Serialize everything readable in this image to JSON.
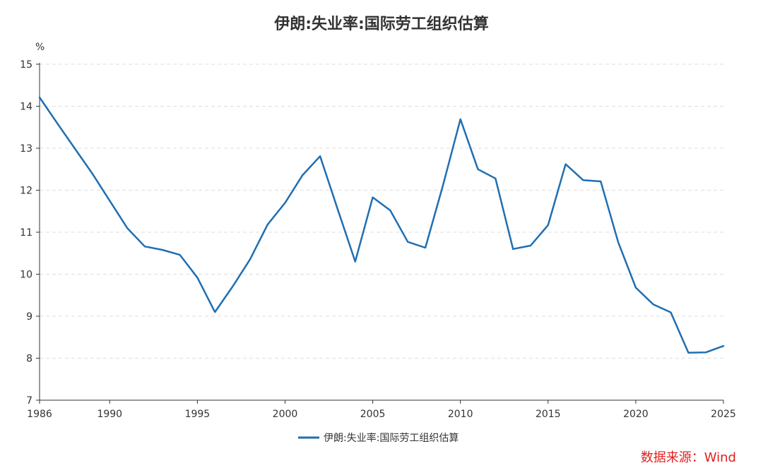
{
  "chart_data": {
    "type": "line",
    "title": "伊朗:失业率:国际劳工组织估算",
    "unit_label": "%",
    "xlim": [
      1986,
      2025
    ],
    "ylim": [
      7,
      15
    ],
    "x_ticks": [
      1986,
      1990,
      1995,
      2000,
      2005,
      2010,
      2015,
      2020,
      2025
    ],
    "y_ticks": [
      7,
      8,
      9,
      10,
      11,
      12,
      13,
      14,
      15
    ],
    "grid": "horizontal-dashed",
    "legend_position": "bottom-center",
    "series": [
      {
        "name": "伊朗:失业率:国际劳工组织估算",
        "color": "#1f6fb2",
        "x": [
          1986,
          1987,
          1988,
          1989,
          1990,
          1991,
          1992,
          1993,
          1994,
          1995,
          1996,
          1997,
          1998,
          1999,
          2000,
          2001,
          2002,
          2003,
          2004,
          2005,
          2006,
          2007,
          2008,
          2009,
          2010,
          2011,
          2012,
          2013,
          2014,
          2015,
          2016,
          2017,
          2018,
          2019,
          2020,
          2021,
          2022,
          2023,
          2024,
          2025
        ],
        "values": [
          14.21,
          13.6,
          13.0,
          12.4,
          11.75,
          11.1,
          10.66,
          10.58,
          10.46,
          9.92,
          9.1,
          9.7,
          10.35,
          11.18,
          11.7,
          12.36,
          12.81,
          11.55,
          10.3,
          11.83,
          11.52,
          10.77,
          10.63,
          12.11,
          13.69,
          12.5,
          12.28,
          10.6,
          10.68,
          11.17,
          12.62,
          12.24,
          12.21,
          10.76,
          9.68,
          9.28,
          9.09,
          8.13,
          8.14,
          8.29
        ]
      }
    ]
  },
  "source_note": "数据来源：Wind"
}
